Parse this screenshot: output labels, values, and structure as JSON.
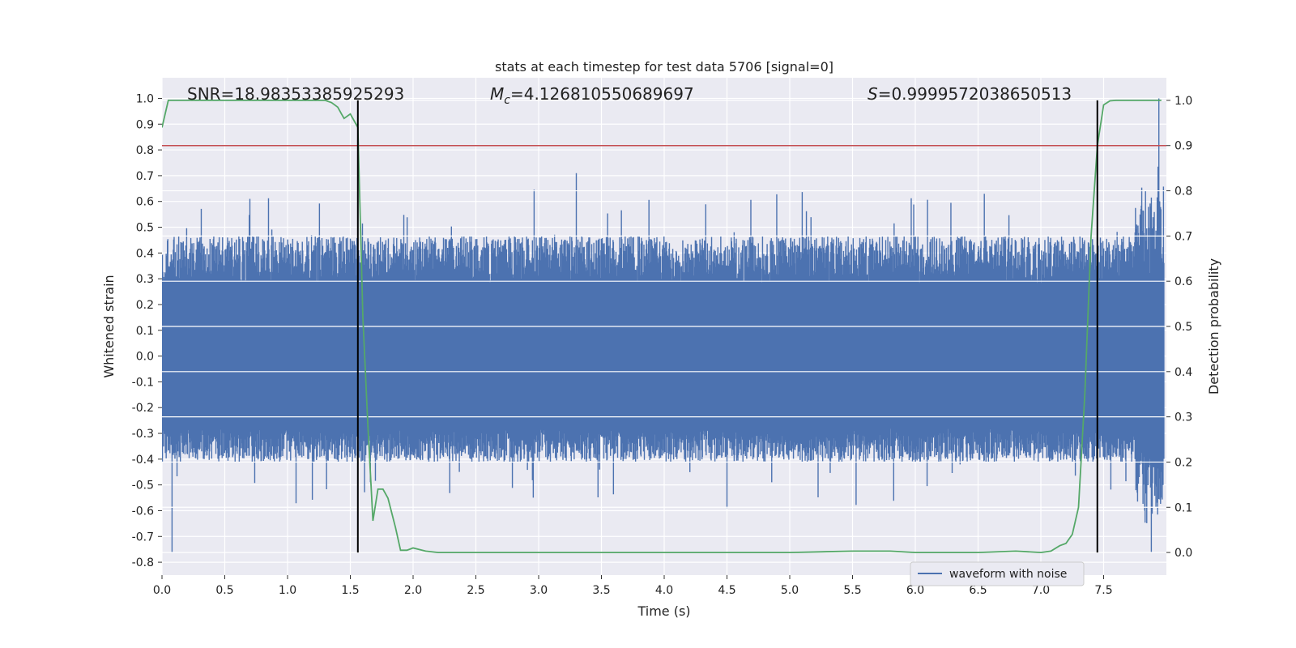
{
  "chart_data": {
    "type": "line",
    "title": "stats at each timestep for test data 5706 [signal=0]",
    "xlabel": "Time (s)",
    "ylabel_left": "Whitened strain",
    "ylabel_right": "Detection probability",
    "xlim": [
      0.0,
      8.0
    ],
    "ylim_left": [
      -0.85,
      1.08
    ],
    "ylim_right": [
      -0.05,
      1.05
    ],
    "x_ticks": [
      "0.0",
      "0.5",
      "1.0",
      "1.5",
      "2.0",
      "2.5",
      "3.0",
      "3.5",
      "4.0",
      "4.5",
      "5.0",
      "5.5",
      "6.0",
      "6.5",
      "7.0",
      "7.5"
    ],
    "y_left_ticks": [
      "-0.8",
      "-0.7",
      "-0.6",
      "-0.5",
      "-0.4",
      "-0.3",
      "-0.2",
      "-0.1",
      "0.0",
      "0.1",
      "0.2",
      "0.3",
      "0.4",
      "0.5",
      "0.6",
      "0.7",
      "0.8",
      "0.9",
      "1.0"
    ],
    "y_right_ticks": [
      "0.0",
      "0.1",
      "0.2",
      "0.3",
      "0.4",
      "0.5",
      "0.6",
      "0.7",
      "0.8",
      "0.9",
      "1.0"
    ],
    "grid": true,
    "annotations": {
      "snr_text": "SNR=18.98353385925293",
      "mc_symbol": "M",
      "mc_sub": "c",
      "mc_value": "=4.126810550689697",
      "s_symbol": "S",
      "s_value": "=0.9999572038650513"
    },
    "legend": {
      "entries": [
        "waveform with noise"
      ],
      "position": "lower right"
    },
    "colors": {
      "waveform": "#4c72b0",
      "probability": "#55a868",
      "threshold": "#c44e52",
      "vlines": "#000000",
      "plot_bg": "#eaeaf2",
      "grid": "#ffffff"
    },
    "threshold_right": 0.9,
    "vlines_x": [
      1.56,
      7.45
    ],
    "waveform_envelope": {
      "core_abs": 0.28,
      "typical_pos_peak": 0.45,
      "typical_neg_peak": -0.4,
      "max": 1.0,
      "min": -0.76
    },
    "series": [
      {
        "name": "Detection probability",
        "axis": "right",
        "x": [
          0.0,
          0.05,
          0.1,
          0.2,
          0.4,
          0.6,
          0.8,
          1.0,
          1.2,
          1.3,
          1.35,
          1.4,
          1.43,
          1.45,
          1.5,
          1.56,
          1.6,
          1.64,
          1.68,
          1.72,
          1.76,
          1.8,
          1.86,
          1.9,
          1.95,
          2.0,
          2.1,
          2.2,
          2.5,
          3.0,
          4.0,
          5.0,
          5.5,
          5.8,
          6.0,
          6.5,
          6.8,
          7.0,
          7.08,
          7.15,
          7.2,
          7.25,
          7.3,
          7.35,
          7.4,
          7.45,
          7.5,
          7.55,
          7.6,
          7.7,
          7.8,
          7.9,
          7.96
        ],
        "y": [
          0.94,
          1.0,
          1.0,
          1.0,
          1.0,
          1.0,
          1.0,
          1.0,
          1.0,
          1.0,
          0.995,
          0.985,
          0.97,
          0.96,
          0.97,
          0.94,
          0.52,
          0.28,
          0.07,
          0.14,
          0.14,
          0.12,
          0.055,
          0.005,
          0.005,
          0.01,
          0.003,
          0.0,
          0.0,
          0.0,
          0.0,
          0.0,
          0.003,
          0.003,
          0.0,
          0.0,
          0.003,
          0.0,
          0.003,
          0.015,
          0.02,
          0.04,
          0.1,
          0.35,
          0.7,
          0.9,
          0.99,
          0.999,
          1.0,
          1.0,
          1.0,
          1.0,
          1.0
        ]
      }
    ]
  }
}
